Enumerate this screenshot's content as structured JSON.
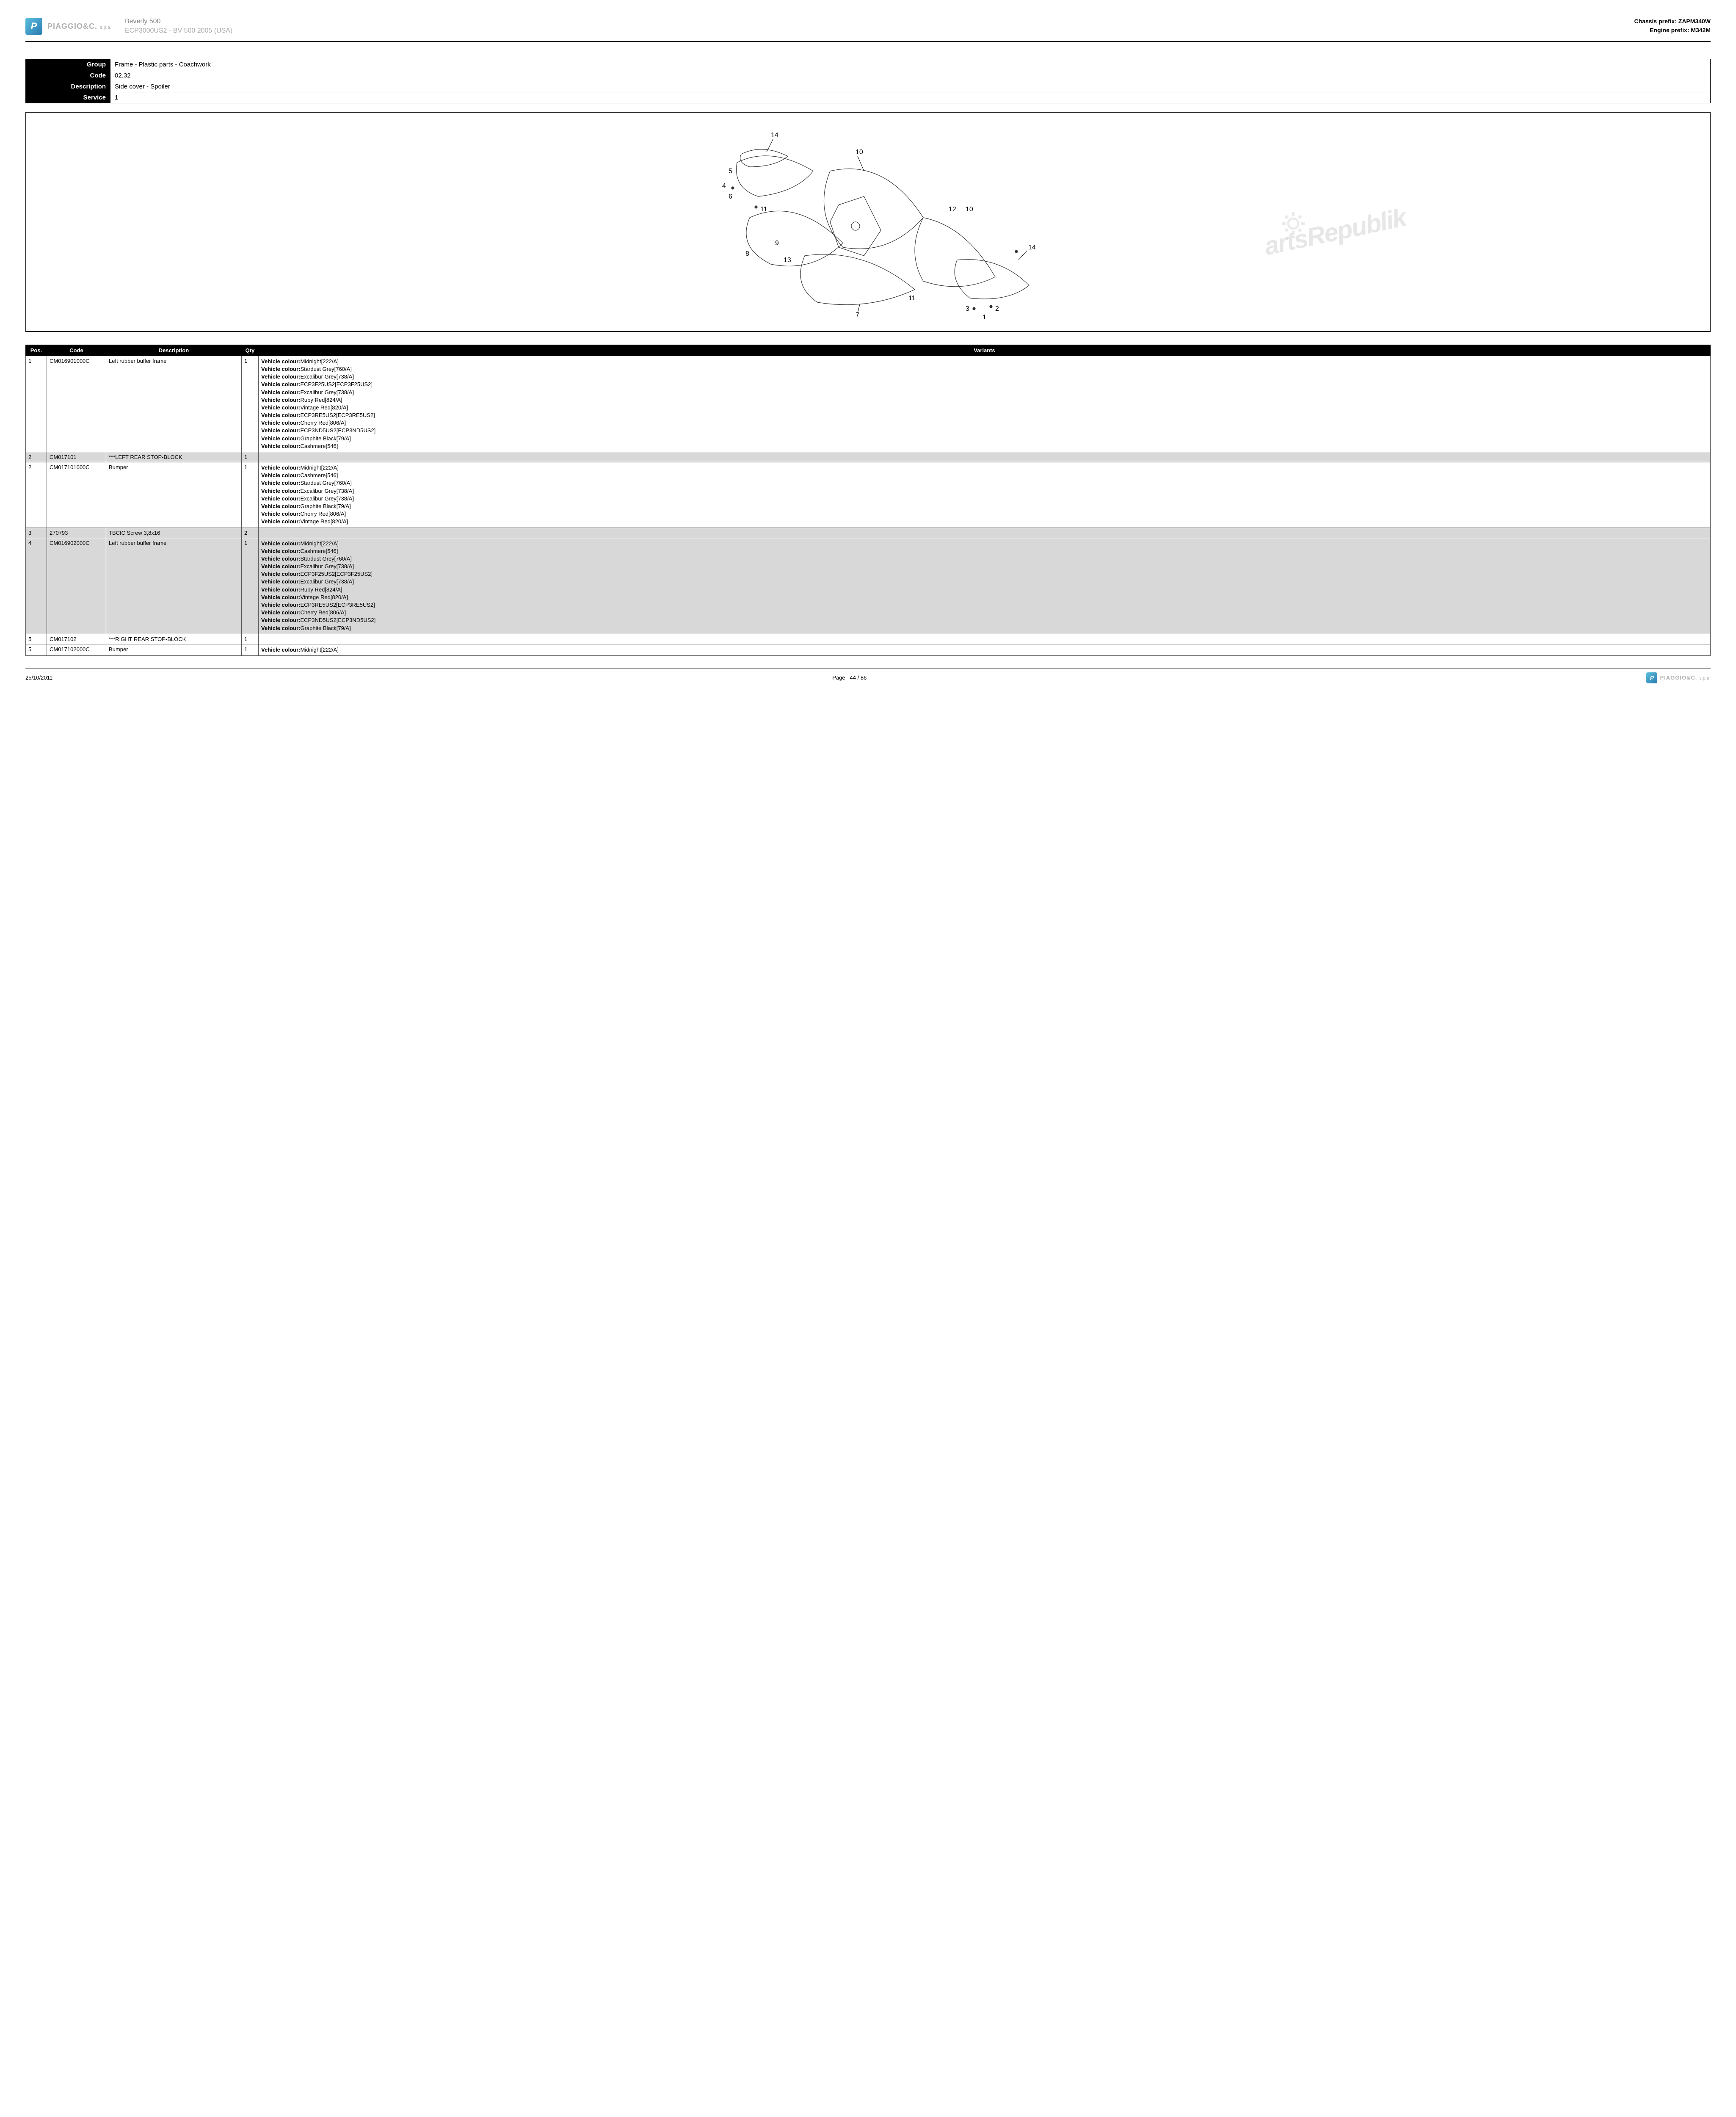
{
  "header": {
    "brand": "PIAGGIO&C.",
    "brand_sub": "s.p.a.",
    "model_line1": "Beverly 500",
    "model_line2": "ECP3000US2 - BV 500 2005 (USA)",
    "chassis_label": "Chassis prefix:",
    "chassis_value": "ZAPM340W",
    "engine_label": "Engine prefix:",
    "engine_value": "M342M"
  },
  "info": {
    "group_label": "Group",
    "group_value": "Frame - Plastic parts - Coachwork",
    "code_label": "Code",
    "code_value": "02.32",
    "desc_label": "Description",
    "desc_value": "Side cover - Spoiler",
    "service_label": "Service",
    "service_value": "1"
  },
  "diagram": {
    "callouts": [
      "14",
      "5",
      "4",
      "6",
      "11",
      "10",
      "9",
      "8",
      "13",
      "12",
      "10",
      "11",
      "14",
      "3",
      "2",
      "1",
      "7"
    ],
    "watermark_text": "artsRepublik"
  },
  "table": {
    "headers": {
      "pos": "Pos.",
      "code": "Code",
      "desc": "Description",
      "qty": "Qty",
      "variants": "Variants"
    },
    "rows": [
      {
        "pos": "1",
        "code": "CM016901000C",
        "desc": "Left rubber buffer frame",
        "qty": "1",
        "shaded": false,
        "variants": [
          [
            "Vehicle colour:",
            "Midnight[222/A]"
          ],
          [
            "Vehicle colour:",
            "Stardust Grey[760/A]"
          ],
          [
            "Vehicle colour:",
            "Excalibur Grey[738/A]"
          ],
          [
            "Vehicle colour:",
            "ECP3F25US2[ECP3F25US2]"
          ],
          [
            "Vehicle colour:",
            "Excalibur Grey[738/A]"
          ],
          [
            "Vehicle colour:",
            "Ruby Red[824/A]"
          ],
          [
            "Vehicle colour:",
            "Vintage Red[820/A]"
          ],
          [
            "Vehicle colour:",
            "ECP3RE5US2[ECP3RE5US2]"
          ],
          [
            "Vehicle colour:",
            "Cherry Red[806/A]"
          ],
          [
            "Vehicle colour:",
            "ECP3ND5US2[ECP3ND5US2]"
          ],
          [
            "Vehicle colour:",
            "Graphite Black[79/A]"
          ],
          [
            "Vehicle colour:",
            "Cashmere[546]"
          ]
        ]
      },
      {
        "pos": "2",
        "code": "CM017101",
        "desc": "***LEFT REAR STOP-BLOCK",
        "qty": "1",
        "shaded": true,
        "variants": []
      },
      {
        "pos": "2",
        "code": "CM017101000C",
        "desc": "Bumper",
        "qty": "1",
        "shaded": false,
        "variants": [
          [
            "Vehicle colour:",
            "Midnight[222/A]"
          ],
          [
            "Vehicle colour:",
            "Cashmere[546]"
          ],
          [
            "Vehicle colour:",
            "Stardust Grey[760/A]"
          ],
          [
            "Vehicle colour:",
            "Excalibur Grey[738/A]"
          ],
          [
            "Vehicle colour:",
            "Excalibur Grey[738/A]"
          ],
          [
            "Vehicle colour:",
            "Graphite Black[79/A]"
          ],
          [
            "Vehicle colour:",
            "Cherry Red[806/A]"
          ],
          [
            "Vehicle colour:",
            "Vintage Red[820/A]"
          ]
        ]
      },
      {
        "pos": "3",
        "code": "270793",
        "desc": "TBCIC Screw 3,8x16",
        "qty": "2",
        "shaded": true,
        "variants": []
      },
      {
        "pos": "4",
        "code": "CM016902000C",
        "desc": "Left rubber buffer frame",
        "qty": "1",
        "shaded": true,
        "variants": [
          [
            "Vehicle colour:",
            "Midnight[222/A]"
          ],
          [
            "Vehicle colour:",
            "Cashmere[546]"
          ],
          [
            "Vehicle colour:",
            "Stardust Grey[760/A]"
          ],
          [
            "Vehicle colour:",
            "Excalibur Grey[738/A]"
          ],
          [
            "Vehicle colour:",
            "ECP3F25US2[ECP3F25US2]"
          ],
          [
            "Vehicle colour:",
            "Excalibur Grey[738/A]"
          ],
          [
            "Vehicle colour:",
            "Ruby Red[824/A]"
          ],
          [
            "Vehicle colour:",
            "Vintage Red[820/A]"
          ],
          [
            "Vehicle colour:",
            "ECP3RE5US2[ECP3RE5US2]"
          ],
          [
            "Vehicle colour:",
            "Cherry Red[806/A]"
          ],
          [
            "Vehicle colour:",
            "ECP3ND5US2[ECP3ND5US2]"
          ],
          [
            "Vehicle colour:",
            "Graphite Black[79/A]"
          ]
        ]
      },
      {
        "pos": "5",
        "code": "CM017102",
        "desc": "***RIGHT REAR STOP-BLOCK",
        "qty": "1",
        "shaded": false,
        "variants": []
      },
      {
        "pos": "5",
        "code": "CM017102000C",
        "desc": "Bumper",
        "qty": "1",
        "shaded": false,
        "variants": [
          [
            "Vehicle colour:",
            "Midnight[222/A]"
          ]
        ]
      }
    ]
  },
  "footer": {
    "date": "25/10/2011",
    "page_label": "Page",
    "page_current": "44",
    "page_sep": "/",
    "page_total": "86"
  }
}
